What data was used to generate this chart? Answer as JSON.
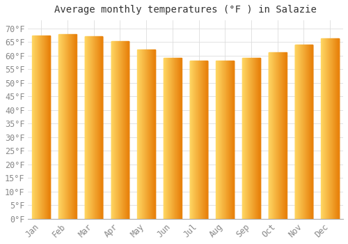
{
  "title": "Average monthly temperatures (°F ) in Salazie",
  "months": [
    "Jan",
    "Feb",
    "Mar",
    "Apr",
    "May",
    "Jun",
    "Jul",
    "Aug",
    "Sep",
    "Oct",
    "Nov",
    "Dec"
  ],
  "values": [
    67.5,
    68.0,
    67.0,
    65.3,
    62.2,
    59.2,
    58.1,
    58.1,
    59.2,
    61.2,
    64.0,
    66.3
  ],
  "bar_color_left": "#FFD966",
  "bar_color_right": "#E8820C",
  "background_color": "#FFFFFF",
  "grid_color": "#DDDDDD",
  "title_color": "#333333",
  "tick_label_color": "#888888",
  "ylim": [
    0,
    73
  ],
  "yticks": [
    0,
    5,
    10,
    15,
    20,
    25,
    30,
    35,
    40,
    45,
    50,
    55,
    60,
    65,
    70
  ],
  "title_fontsize": 10,
  "tick_fontsize": 8.5
}
